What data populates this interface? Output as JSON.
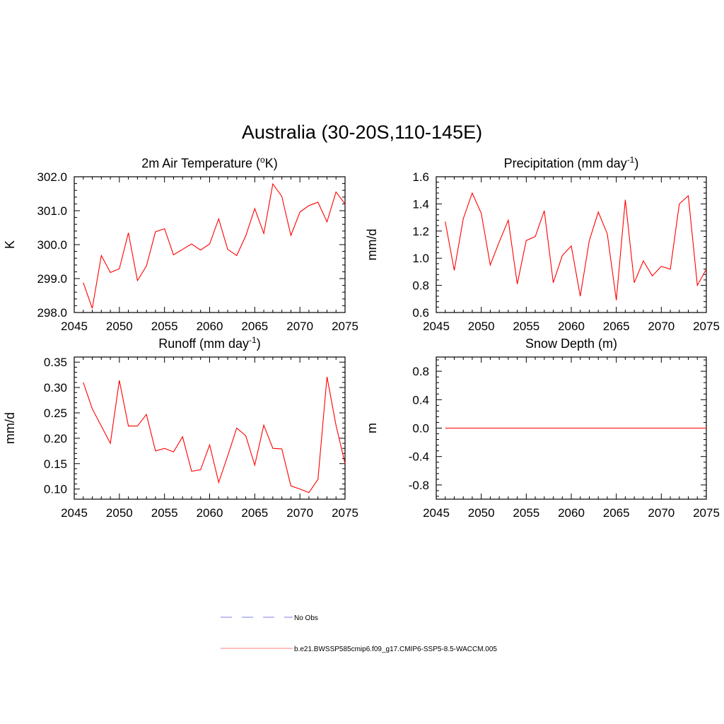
{
  "title": "Australia (30-20S,110-145E)",
  "legend": [
    {
      "label": "No Obs",
      "color": "#9999ee",
      "dash": true
    },
    {
      "label": "b.e21.BWSSP585cmip6.f09_g17.CMIP6-SSP5-8.5-WACCM.005",
      "color": "#ff9999",
      "dash": false
    }
  ],
  "chart_data": [
    {
      "type": "line",
      "title": "2m Air Temperature (",
      "title_sup": "o",
      "title_after": "K)",
      "ylabel": "K",
      "xlim": [
        2045,
        2075
      ],
      "ylim": [
        298.0,
        302.0
      ],
      "xticks": [
        2045,
        2050,
        2055,
        2060,
        2065,
        2070,
        2075
      ],
      "yticks": [
        298.0,
        299.0,
        300.0,
        301.0,
        302.0
      ],
      "ytick_labels": [
        "298.0",
        "299.0",
        "300.0",
        "301.0",
        "302.0"
      ],
      "line_color": "#ff0000",
      "x": [
        2046,
        2047,
        2048,
        2049,
        2050,
        2051,
        2052,
        2053,
        2054,
        2055,
        2056,
        2057,
        2058,
        2059,
        2060,
        2061,
        2062,
        2063,
        2064,
        2065,
        2066,
        2067,
        2068,
        2069,
        2070,
        2071,
        2072,
        2073,
        2074,
        2075
      ],
      "y": [
        298.88,
        298.12,
        299.68,
        299.18,
        299.29,
        300.35,
        298.94,
        299.37,
        300.38,
        300.47,
        299.7,
        299.86,
        300.02,
        299.84,
        300.02,
        300.76,
        299.86,
        299.68,
        300.26,
        301.06,
        300.33,
        301.79,
        301.42,
        300.27,
        300.96,
        301.15,
        301.25,
        300.67,
        301.55,
        301.2
      ]
    },
    {
      "type": "line",
      "title": "Precipitation (mm day",
      "title_sup": "-1",
      "title_after": ")",
      "ylabel": "mm/d",
      "xlim": [
        2045,
        2075
      ],
      "ylim": [
        0.6,
        1.6
      ],
      "xticks": [
        2045,
        2050,
        2055,
        2060,
        2065,
        2070,
        2075
      ],
      "yticks": [
        0.6,
        0.8,
        1.0,
        1.2,
        1.4,
        1.6
      ],
      "ytick_labels": [
        "0.6",
        "0.8",
        "1.0",
        "1.2",
        "1.4",
        "1.6"
      ],
      "line_color": "#ff0000",
      "x": [
        2046,
        2047,
        2048,
        2049,
        2050,
        2051,
        2052,
        2053,
        2054,
        2055,
        2056,
        2057,
        2058,
        2059,
        2060,
        2061,
        2062,
        2063,
        2064,
        2065,
        2066,
        2067,
        2068,
        2069,
        2070,
        2071,
        2072,
        2073,
        2074,
        2075
      ],
      "y": [
        1.27,
        0.91,
        1.29,
        1.48,
        1.33,
        0.95,
        1.12,
        1.28,
        0.81,
        1.13,
        1.16,
        1.35,
        0.82,
        1.02,
        1.09,
        0.72,
        1.13,
        1.34,
        1.18,
        0.69,
        1.43,
        0.82,
        0.98,
        0.87,
        0.94,
        0.92,
        1.4,
        1.46,
        0.8,
        0.92
      ]
    },
    {
      "type": "line",
      "title": "Runoff (mm day",
      "title_sup": "-1",
      "title_after": ")",
      "ylabel": "mm/d",
      "xlim": [
        2045,
        2075
      ],
      "ylim": [
        0.08,
        0.36
      ],
      "xticks": [
        2045,
        2050,
        2055,
        2060,
        2065,
        2070,
        2075
      ],
      "yticks": [
        0.1,
        0.15,
        0.2,
        0.25,
        0.3,
        0.35
      ],
      "ytick_labels": [
        "0.10",
        "0.15",
        "0.20",
        "0.25",
        "0.30",
        "0.35"
      ],
      "line_color": "#ff0000",
      "x": [
        2046,
        2047,
        2048,
        2049,
        2050,
        2051,
        2052,
        2053,
        2054,
        2055,
        2056,
        2057,
        2058,
        2059,
        2060,
        2061,
        2062,
        2063,
        2064,
        2065,
        2066,
        2067,
        2068,
        2069,
        2070,
        2071,
        2072,
        2073,
        2074,
        2075
      ],
      "y": [
        0.31,
        0.258,
        0.224,
        0.19,
        0.314,
        0.224,
        0.224,
        0.247,
        0.175,
        0.18,
        0.173,
        0.203,
        0.135,
        0.138,
        0.187,
        0.113,
        0.165,
        0.22,
        0.205,
        0.147,
        0.226,
        0.18,
        0.179,
        0.106,
        0.1,
        0.093,
        0.119,
        0.321,
        0.226,
        0.15
      ]
    },
    {
      "type": "line",
      "title": "Snow Depth (m)",
      "title_sup": "",
      "title_after": "",
      "ylabel": "m",
      "xlim": [
        2045,
        2075
      ],
      "ylim": [
        -1.0,
        1.0
      ],
      "xticks": [
        2045,
        2050,
        2055,
        2060,
        2065,
        2070,
        2075
      ],
      "yticks": [
        -0.8,
        -0.4,
        0.0,
        0.4,
        0.8
      ],
      "ytick_labels": [
        "-0.8",
        "-0.4",
        "0.0",
        "0.4",
        "0.8"
      ],
      "line_color": "#ff0000",
      "x": [
        2046,
        2047,
        2048,
        2049,
        2050,
        2051,
        2052,
        2053,
        2054,
        2055,
        2056,
        2057,
        2058,
        2059,
        2060,
        2061,
        2062,
        2063,
        2064,
        2065,
        2066,
        2067,
        2068,
        2069,
        2070,
        2071,
        2072,
        2073,
        2074,
        2075
      ],
      "y": [
        0,
        0,
        0,
        0,
        0,
        0,
        0,
        0,
        0,
        0,
        0,
        0,
        0,
        0,
        0,
        0,
        0,
        0,
        0,
        0,
        0,
        0,
        0,
        0,
        0,
        0,
        0,
        0,
        0,
        0
      ]
    }
  ]
}
